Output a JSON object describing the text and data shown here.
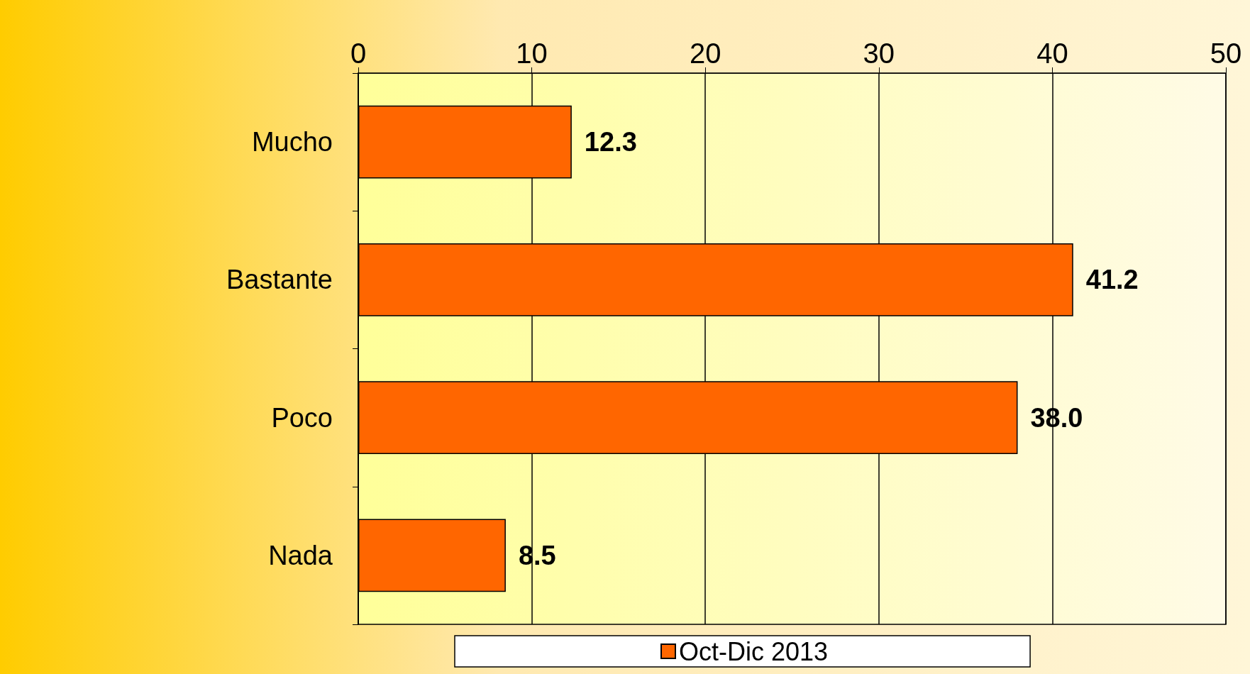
{
  "chart_data": {
    "type": "bar",
    "orientation": "horizontal",
    "categories": [
      "Mucho",
      "Bastante",
      "Poco",
      "Nada"
    ],
    "series": [
      {
        "name": "Oct-Dic 2013",
        "color": "#ff6600",
        "values": [
          12.3,
          41.2,
          38.0,
          8.5
        ],
        "value_labels": [
          "12.3",
          "41.2",
          "38.0",
          "8.5"
        ]
      }
    ],
    "xlim": [
      0,
      50
    ],
    "xticks": [
      0,
      10,
      20,
      30,
      40,
      50
    ],
    "grid": "x",
    "legend": "bottom"
  }
}
